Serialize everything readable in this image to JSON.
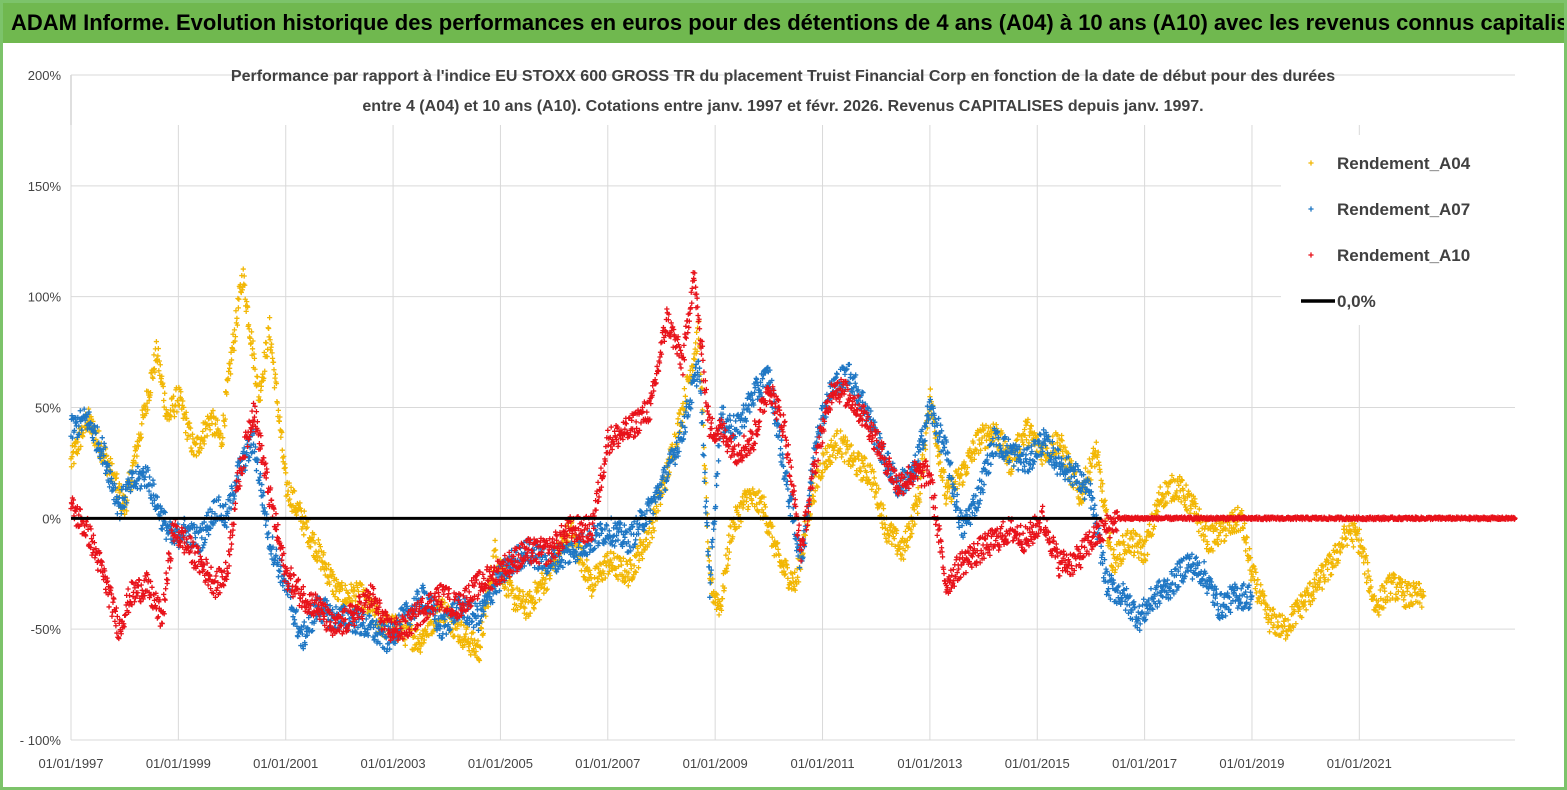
{
  "banner_title": "ADAM Informe. Evolution historique des performances en euros pour des détentions de 4 ans (A04) à 10 ans (A10) avec les revenus connus capitalisés",
  "colors": {
    "banner": "#70b84f",
    "a04": "#f2b705",
    "a07": "#1f77c4",
    "a10": "#e8121a",
    "zero": "#000000",
    "grid": "#d9d9d9"
  },
  "chart_data": {
    "type": "scatter",
    "title_line1": "Performance par rapport à l'indice EU STOXX 600 GROSS TR  du placement Truist Financial Corp en fonction de la date de début pour des durées",
    "title_line2": "entre 4 (A04) et 10 ans (A10).  Cotations entre janv. 1997 et févr. 2026. Revenus  CAPITALISES depuis janv. 1997.",
    "xlim": [
      1997.0,
      2023.9
    ],
    "ylim": [
      -100,
      200
    ],
    "y_ticks": [
      200,
      150,
      100,
      50,
      0,
      -50,
      -100
    ],
    "y_tick_labels": [
      "200%",
      "150%",
      "100%",
      "50%",
      "0%",
      "-50%",
      "- 100%"
    ],
    "x_ticks": [
      1997,
      1999,
      2001,
      2003,
      2005,
      2007,
      2009,
      2011,
      2013,
      2015,
      2017,
      2019,
      2021
    ],
    "x_tick_labels": [
      "01/01/1997",
      "01/01/1999",
      "01/01/2001",
      "01/01/2003",
      "01/01/2005",
      "01/01/2007",
      "01/01/2009",
      "01/01/2011",
      "01/01/2013",
      "01/01/2015",
      "01/01/2017",
      "01/01/2019",
      "01/01/2021"
    ],
    "legend_position": "top-right",
    "series": [
      {
        "name": "Rendement_A04",
        "color": "#f2b705",
        "x": [
          1997.0,
          1997.3,
          1997.6,
          1998.0,
          1998.3,
          1998.6,
          1998.8,
          1999.0,
          1999.3,
          1999.6,
          1999.8,
          2000.0,
          2000.2,
          2000.5,
          2000.7,
          2000.9,
          2001.0,
          2001.3,
          2001.6,
          2002.0,
          2002.4,
          2002.8,
          2003.1,
          2003.5,
          2003.9,
          2004.2,
          2004.6,
          2004.9,
          2005.2,
          2005.5,
          2005.9,
          2006.3,
          2006.7,
          2007.0,
          2007.4,
          2007.8,
          2008.1,
          2008.4,
          2008.7,
          2008.9,
          2009.1,
          2009.3,
          2009.6,
          2009.9,
          2010.2,
          2010.5,
          2010.8,
          2011.0,
          2011.3,
          2011.6,
          2011.9,
          2012.2,
          2012.5,
          2012.8,
          2013.0,
          2013.3,
          2013.6,
          2013.9,
          2014.2,
          2014.5,
          2014.8,
          2015.1,
          2015.4,
          2015.8,
          2016.1,
          2016.4,
          2016.7,
          2017.0,
          2017.3,
          2017.6,
          2017.9,
          2018.2,
          2018.5,
          2018.8,
          2019.0,
          2019.3,
          2019.6,
          2019.9,
          2020.2,
          2020.5,
          2020.8,
          2021.0,
          2021.3,
          2021.6,
          2021.9,
          2022.2
        ],
        "values": [
          25,
          45,
          30,
          5,
          40,
          75,
          45,
          55,
          30,
          45,
          35,
          75,
          110,
          55,
          85,
          40,
          15,
          0,
          -15,
          -35,
          -35,
          -48,
          -50,
          -55,
          -40,
          -50,
          -60,
          -15,
          -35,
          -40,
          -25,
          -5,
          -30,
          -20,
          -25,
          -5,
          20,
          50,
          85,
          -30,
          -40,
          -5,
          10,
          5,
          -20,
          -30,
          10,
          25,
          35,
          25,
          20,
          -5,
          -15,
          10,
          55,
          10,
          20,
          35,
          40,
          25,
          40,
          30,
          35,
          10,
          30,
          -20,
          -10,
          -15,
          10,
          15,
          5,
          -10,
          -5,
          0,
          -25,
          -45,
          -50,
          -40,
          -30,
          -20,
          -5,
          -10,
          -40,
          -30,
          -35,
          -35
        ]
      },
      {
        "name": "Rendement_A07",
        "color": "#1f77c4",
        "x": [
          1997.0,
          1997.3,
          1997.6,
          1997.9,
          1998.1,
          1998.4,
          1998.7,
          1998.9,
          1999.1,
          1999.4,
          1999.7,
          1999.9,
          2000.1,
          2000.4,
          2000.7,
          2001.0,
          2001.3,
          2001.6,
          2001.9,
          2002.2,
          2002.6,
          2002.9,
          2003.2,
          2003.6,
          2003.9,
          2004.2,
          2004.6,
          2004.9,
          2005.2,
          2005.5,
          2005.9,
          2006.3,
          2006.7,
          2007.0,
          2007.4,
          2007.8,
          2008.1,
          2008.4,
          2008.7,
          2008.9,
          2009.1,
          2009.4,
          2009.7,
          2010.0,
          2010.3,
          2010.6,
          2010.9,
          2011.2,
          2011.5,
          2011.8,
          2012.1,
          2012.4,
          2012.7,
          2013.0,
          2013.3,
          2013.6,
          2013.9,
          2014.2,
          2014.5,
          2014.8,
          2015.1,
          2015.4,
          2015.7,
          2016.0,
          2016.3,
          2016.6,
          2016.9,
          2017.2,
          2017.5,
          2017.8,
          2018.1,
          2018.4,
          2018.7,
          2019.0
        ],
        "values": [
          40,
          45,
          30,
          5,
          15,
          20,
          0,
          -10,
          -5,
          -10,
          5,
          0,
          20,
          35,
          -10,
          -30,
          -55,
          -40,
          -45,
          -45,
          -50,
          -55,
          -45,
          -35,
          -50,
          -40,
          -45,
          -30,
          -20,
          -15,
          -20,
          -15,
          -10,
          -5,
          -10,
          5,
          20,
          40,
          70,
          -30,
          45,
          40,
          55,
          65,
          20,
          -20,
          40,
          60,
          65,
          50,
          30,
          15,
          20,
          50,
          30,
          -5,
          10,
          35,
          30,
          25,
          35,
          25,
          20,
          10,
          -30,
          -35,
          -45,
          -35,
          -30,
          -20,
          -25,
          -40,
          -35,
          -35
        ]
      },
      {
        "name": "Rendement_A10",
        "color": "#e8121a",
        "x": [
          1997.0,
          1997.3,
          1997.6,
          1997.9,
          1998.1,
          1998.4,
          1998.7,
          1998.9,
          1999.1,
          1999.4,
          1999.7,
          1999.9,
          2000.1,
          2000.4,
          2000.7,
          2001.0,
          2001.3,
          2001.6,
          2001.9,
          2002.2,
          2002.6,
          2002.9,
          2003.2,
          2003.6,
          2003.9,
          2004.2,
          2004.6,
          2004.9,
          2005.2,
          2005.5,
          2005.9,
          2006.3,
          2006.7,
          2007.0,
          2007.4,
          2007.8,
          2008.1,
          2008.4,
          2008.6,
          2008.9,
          2009.1,
          2009.4,
          2009.7,
          2010.0,
          2010.3,
          2010.6,
          2010.9,
          2011.2,
          2011.5,
          2011.8,
          2012.1,
          2012.4,
          2012.7,
          2013.0,
          2013.3,
          2013.6,
          2013.9,
          2014.2,
          2014.5,
          2014.8,
          2015.1,
          2015.4,
          2015.7,
          2016.0,
          2016.5,
          2017.0,
          2017.5,
          2018.0,
          2018.5,
          2019.0,
          2019.5,
          2020.0,
          2020.5,
          2021.0,
          2021.5,
          2022.0,
          2022.5,
          2023.0,
          2023.5,
          2023.9
        ],
        "values": [
          5,
          -5,
          -25,
          -50,
          -35,
          -30,
          -45,
          -5,
          -10,
          -20,
          -30,
          -25,
          15,
          50,
          10,
          -25,
          -35,
          -40,
          -50,
          -45,
          -35,
          -50,
          -50,
          -40,
          -35,
          -40,
          -30,
          -25,
          -20,
          -15,
          -15,
          -5,
          -5,
          35,
          40,
          50,
          90,
          70,
          110,
          40,
          40,
          30,
          35,
          60,
          40,
          -15,
          30,
          60,
          55,
          45,
          30,
          15,
          20,
          20,
          -30,
          -20,
          -15,
          -10,
          -5,
          -10,
          0,
          -20,
          -20,
          -10,
          0,
          0,
          0,
          0,
          0,
          0,
          0,
          0,
          0,
          0,
          0,
          0,
          0,
          0,
          0,
          0
        ]
      },
      {
        "name": "0,0%",
        "color": "#000000",
        "x": [
          1997.0,
          2016.2
        ],
        "values": [
          0,
          0
        ]
      }
    ]
  }
}
